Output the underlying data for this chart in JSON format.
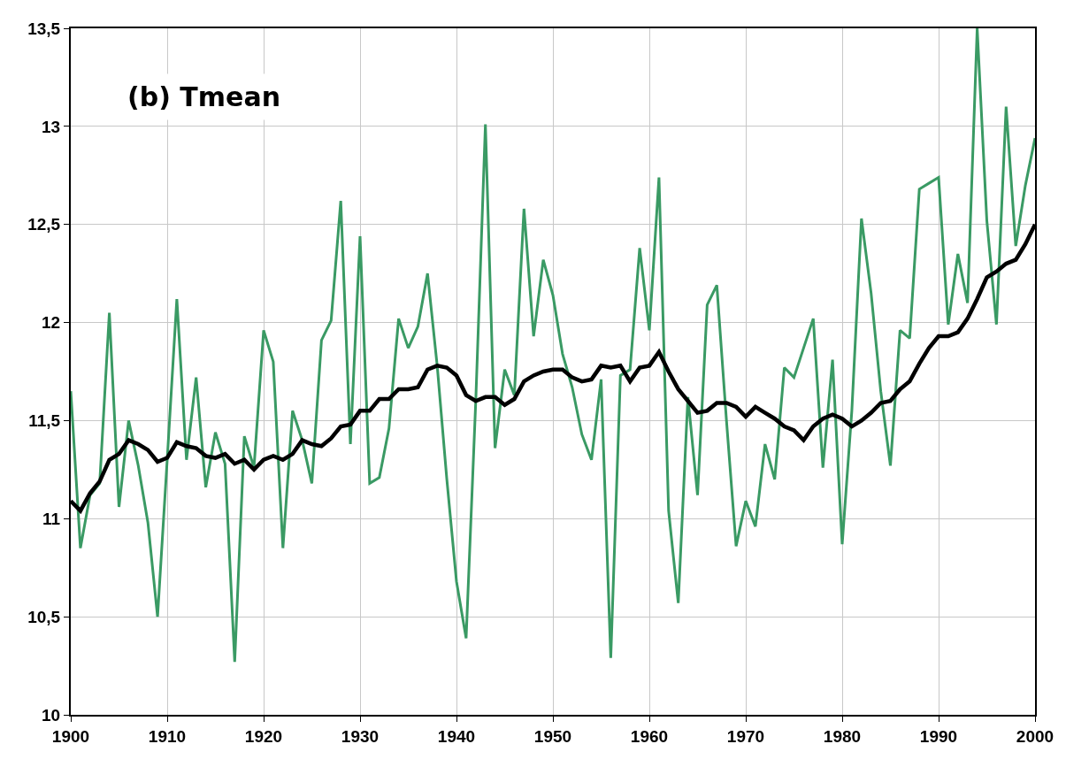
{
  "chart_data": {
    "type": "line",
    "title": "(b) Tmean",
    "x": [
      1900,
      1901,
      1902,
      1903,
      1904,
      1905,
      1906,
      1907,
      1908,
      1909,
      1910,
      1911,
      1912,
      1913,
      1914,
      1915,
      1916,
      1917,
      1918,
      1919,
      1920,
      1921,
      1922,
      1923,
      1924,
      1925,
      1926,
      1927,
      1928,
      1929,
      1930,
      1931,
      1932,
      1933,
      1934,
      1935,
      1936,
      1937,
      1938,
      1939,
      1940,
      1941,
      1942,
      1943,
      1944,
      1945,
      1946,
      1947,
      1948,
      1949,
      1950,
      1951,
      1952,
      1953,
      1954,
      1955,
      1956,
      1957,
      1958,
      1959,
      1960,
      1961,
      1962,
      1963,
      1964,
      1965,
      1966,
      1967,
      1968,
      1969,
      1970,
      1971,
      1972,
      1973,
      1974,
      1975,
      1976,
      1977,
      1978,
      1979,
      1980,
      1981,
      1982,
      1983,
      1984,
      1985,
      1986,
      1987,
      1988,
      1989,
      1990,
      1991,
      1992,
      1993,
      1994,
      1995,
      1996,
      1997,
      1998,
      1999,
      2000
    ],
    "series": [
      {
        "color": "#3a9a64",
        "values": [
          11.65,
          10.85,
          11.12,
          11.18,
          12.05,
          11.06,
          11.5,
          11.27,
          10.98,
          10.5,
          11.3,
          12.12,
          11.3,
          11.72,
          11.16,
          11.44,
          11.28,
          10.27,
          11.42,
          11.26,
          11.96,
          11.8,
          10.85,
          11.55,
          11.4,
          11.18,
          11.91,
          12.01,
          12.62,
          11.38,
          12.44,
          11.18,
          11.21,
          11.46,
          12.02,
          11.87,
          11.98,
          12.25,
          11.78,
          11.2,
          10.68,
          10.39,
          11.6,
          13.01,
          11.36,
          11.76,
          11.63,
          12.58,
          11.93,
          12.32,
          12.14,
          11.84,
          11.67,
          11.43,
          11.3,
          11.71,
          10.29,
          11.73,
          11.76,
          12.38,
          11.96,
          12.74,
          11.04,
          10.57,
          11.62,
          11.12,
          12.09,
          12.19,
          11.5,
          10.86,
          11.09,
          10.96,
          11.38,
          11.2,
          11.77,
          11.72,
          11.87,
          12.02,
          11.26,
          11.81,
          10.87,
          11.55,
          12.53,
          12.15,
          11.65,
          11.27,
          11.96,
          11.92,
          12.68,
          12.71,
          12.74,
          11.99,
          12.35,
          12.1,
          13.5,
          12.52,
          11.99,
          13.1,
          12.39,
          12.7,
          12.94
        ]
      },
      {
        "color": "#000000",
        "values": [
          11.09,
          11.04,
          11.13,
          11.19,
          11.3,
          11.33,
          11.4,
          11.38,
          11.35,
          11.29,
          11.31,
          11.39,
          11.37,
          11.36,
          11.32,
          11.31,
          11.33,
          11.28,
          11.3,
          11.25,
          11.3,
          11.32,
          11.3,
          11.33,
          11.4,
          11.38,
          11.37,
          11.41,
          11.47,
          11.48,
          11.55,
          11.55,
          11.61,
          11.61,
          11.66,
          11.66,
          11.67,
          11.76,
          11.78,
          11.77,
          11.73,
          11.63,
          11.6,
          11.62,
          11.62,
          11.58,
          11.61,
          11.7,
          11.73,
          11.75,
          11.76,
          11.76,
          11.72,
          11.7,
          11.71,
          11.78,
          11.77,
          11.78,
          11.7,
          11.77,
          11.78,
          11.85,
          11.75,
          11.66,
          11.6,
          11.54,
          11.55,
          11.59,
          11.59,
          11.57,
          11.52,
          11.57,
          11.54,
          11.51,
          11.47,
          11.45,
          11.4,
          11.47,
          11.51,
          11.53,
          11.51,
          11.47,
          11.5,
          11.54,
          11.59,
          11.6,
          11.66,
          11.7,
          11.79,
          11.87,
          11.93,
          11.93,
          11.95,
          12.02,
          12.12,
          12.23,
          12.26,
          12.3,
          12.32,
          12.4,
          12.5
        ]
      }
    ],
    "xlim": [
      1900,
      2000
    ],
    "xticks": [
      1900,
      1910,
      1920,
      1930,
      1940,
      1950,
      1960,
      1970,
      1980,
      1990,
      2000
    ],
    "ylim": [
      10,
      13.5
    ],
    "yticks": [
      10,
      {
        "value": 10.5,
        "label": "10,5"
      },
      11,
      {
        "value": 11.5,
        "label": "11,5"
      },
      12,
      {
        "value": 12.5,
        "label": "12,5"
      },
      13,
      {
        "value": 13.5,
        "label": "13,5"
      }
    ],
    "grid": true,
    "marker": "none",
    "line_style": "solid"
  }
}
